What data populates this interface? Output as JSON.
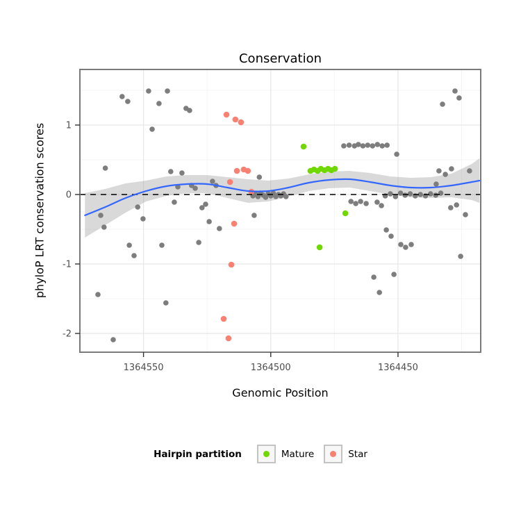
{
  "chart_data": {
    "type": "scatter",
    "title": "Conservation",
    "xlabel": "Genomic Position",
    "ylabel": "phyloP LRT conservation scores",
    "x_axis": {
      "ticks": [
        1364550,
        1364500,
        1364450
      ],
      "range_left_to_right": [
        1364575,
        1364417.5
      ],
      "reversed": true
    },
    "y_axis": {
      "ticks": [
        1,
        0,
        -1,
        -2
      ],
      "range": [
        -2.27,
        1.8
      ]
    },
    "hline": {
      "y": 0,
      "style": "dashed",
      "color": "#000000"
    },
    "smooth": {
      "color": "#3366FF",
      "ribbon_color": "#9C9C9C",
      "ribbon_opacity": 0.38,
      "points": [
        [
          1364573,
          -0.3,
          -0.62,
          0.02
        ],
        [
          1364565,
          -0.18,
          -0.44,
          0.08
        ],
        [
          1364557,
          -0.05,
          -0.26,
          0.16
        ],
        [
          1364549,
          0.05,
          -0.1,
          0.2
        ],
        [
          1364541,
          0.12,
          -0.02,
          0.26
        ],
        [
          1364533,
          0.15,
          0.02,
          0.28
        ],
        [
          1364525,
          0.15,
          0.02,
          0.28
        ],
        [
          1364517,
          0.1,
          -0.05,
          0.25
        ],
        [
          1364509,
          0.05,
          -0.12,
          0.22
        ],
        [
          1364501,
          0.05,
          -0.1,
          0.2
        ],
        [
          1364493,
          0.1,
          -0.03,
          0.23
        ],
        [
          1364485,
          0.17,
          0.05,
          0.29
        ],
        [
          1364477,
          0.21,
          0.09,
          0.33
        ],
        [
          1364469,
          0.22,
          0.1,
          0.34
        ],
        [
          1364461,
          0.18,
          0.05,
          0.31
        ],
        [
          1364453,
          0.13,
          0.0,
          0.26
        ],
        [
          1364445,
          0.1,
          -0.04,
          0.24
        ],
        [
          1364437,
          0.1,
          -0.05,
          0.25
        ],
        [
          1364429,
          0.13,
          -0.04,
          0.3
        ],
        [
          1364421,
          0.18,
          -0.08,
          0.44
        ],
        [
          1364418,
          0.2,
          -0.12,
          0.52
        ]
      ]
    },
    "series": [
      {
        "name": "other",
        "color": "#7D7D7D",
        "radius": 3.8,
        "points": [
          [
            1364565.0,
            0.38
          ],
          [
            1364566.8,
            -0.3
          ],
          [
            1364565.5,
            -0.47
          ],
          [
            1364567.9,
            -1.44
          ],
          [
            1364561.9,
            -2.09
          ],
          [
            1364558.4,
            1.41
          ],
          [
            1364556.2,
            1.34
          ],
          [
            1364555.6,
            -0.73
          ],
          [
            1364553.7,
            -0.88
          ],
          [
            1364552.3,
            -0.18
          ],
          [
            1364550.2,
            -0.35
          ],
          [
            1364548.0,
            1.49
          ],
          [
            1364546.6,
            0.94
          ],
          [
            1364543.9,
            1.31
          ],
          [
            1364542.8,
            -0.73
          ],
          [
            1364541.2,
            -1.56
          ],
          [
            1364540.6,
            1.49
          ],
          [
            1364539.3,
            0.33
          ],
          [
            1364537.9,
            -0.11
          ],
          [
            1364536.5,
            0.11
          ],
          [
            1364534.9,
            0.31
          ],
          [
            1364533.3,
            1.24
          ],
          [
            1364531.9,
            1.21
          ],
          [
            1364531.1,
            0.13
          ],
          [
            1364529.7,
            0.09
          ],
          [
            1364528.3,
            -0.69
          ],
          [
            1364527.0,
            -0.19
          ],
          [
            1364525.6,
            -0.14
          ],
          [
            1364524.2,
            -0.39
          ],
          [
            1364522.9,
            0.19
          ],
          [
            1364521.5,
            0.13
          ],
          [
            1364520.2,
            -0.49
          ],
          [
            1364507.0,
            -0.02
          ],
          [
            1364506.0,
            0.01
          ],
          [
            1364505.0,
            -0.03
          ],
          [
            1364504.0,
            0.02
          ],
          [
            1364503.0,
            -0.01
          ],
          [
            1364502.0,
            -0.04
          ],
          [
            1364501.0,
            0.01
          ],
          [
            1364500.0,
            -0.02
          ],
          [
            1364499.0,
            0.02
          ],
          [
            1364498.0,
            -0.03
          ],
          [
            1364497.0,
            0.0
          ],
          [
            1364496.0,
            -0.02
          ],
          [
            1364495.0,
            0.01
          ],
          [
            1364494.0,
            -0.03
          ],
          [
            1364506.5,
            -0.3
          ],
          [
            1364504.5,
            0.25
          ],
          [
            1364471.3,
            0.7
          ],
          [
            1364469.2,
            0.71
          ],
          [
            1364467.1,
            0.7
          ],
          [
            1364465.6,
            0.72
          ],
          [
            1364463.8,
            0.7
          ],
          [
            1364461.9,
            0.71
          ],
          [
            1364460.0,
            0.7
          ],
          [
            1364458.1,
            0.72
          ],
          [
            1364456.2,
            0.7
          ],
          [
            1364454.3,
            0.71
          ],
          [
            1364450.5,
            0.58
          ],
          [
            1364468.5,
            -0.1
          ],
          [
            1364466.6,
            -0.13
          ],
          [
            1364464.7,
            -0.1
          ],
          [
            1364462.5,
            -0.13
          ],
          [
            1364458.2,
            -0.11
          ],
          [
            1364456.5,
            -0.16
          ],
          [
            1364459.5,
            -1.19
          ],
          [
            1364457.3,
            -1.41
          ],
          [
            1364454.6,
            -0.51
          ],
          [
            1364452.7,
            -0.6
          ],
          [
            1364451.6,
            -1.15
          ],
          [
            1364448.9,
            -0.72
          ],
          [
            1364447.0,
            -0.76
          ],
          [
            1364444.8,
            -0.72
          ],
          [
            1364455.0,
            -0.02
          ],
          [
            1364453.0,
            0.01
          ],
          [
            1364451.0,
            -0.03
          ],
          [
            1364449.0,
            0.02
          ],
          [
            1364447.2,
            -0.01
          ],
          [
            1364445.2,
            0.01
          ],
          [
            1364443.2,
            -0.02
          ],
          [
            1364441.2,
            0.0
          ],
          [
            1364439.2,
            -0.02
          ],
          [
            1364437.2,
            0.01
          ],
          [
            1364435.2,
            -0.01
          ],
          [
            1364433.2,
            0.02
          ],
          [
            1364435.0,
            0.15
          ],
          [
            1364433.9,
            0.34
          ],
          [
            1364431.4,
            0.29
          ],
          [
            1364429.0,
            0.37
          ],
          [
            1364432.5,
            1.3
          ],
          [
            1364427.6,
            1.49
          ],
          [
            1364426.0,
            1.39
          ],
          [
            1364429.3,
            -0.19
          ],
          [
            1364427.0,
            -0.15
          ],
          [
            1364425.4,
            -0.89
          ],
          [
            1364423.5,
            -0.29
          ],
          [
            1364421.9,
            0.34
          ]
        ]
      },
      {
        "name": "Mature",
        "color": "#70D800",
        "radius": 4.3,
        "points": [
          [
            1364487.1,
            0.69
          ],
          [
            1364484.4,
            0.34
          ],
          [
            1364483.0,
            0.36
          ],
          [
            1364481.6,
            0.34
          ],
          [
            1364480.3,
            0.37
          ],
          [
            1364478.9,
            0.35
          ],
          [
            1364477.5,
            0.37
          ],
          [
            1364476.2,
            0.35
          ],
          [
            1364474.8,
            0.37
          ],
          [
            1364480.8,
            -0.76
          ],
          [
            1364470.7,
            -0.27
          ]
        ]
      },
      {
        "name": "Star",
        "color": "#FA8072",
        "radius": 4.3,
        "points": [
          [
            1364517.4,
            1.15
          ],
          [
            1364513.9,
            1.08
          ],
          [
            1364511.7,
            1.04
          ],
          [
            1364516.0,
            0.18
          ],
          [
            1364513.3,
            0.34
          ],
          [
            1364510.6,
            0.36
          ],
          [
            1364509.0,
            0.34
          ],
          [
            1364514.4,
            -0.42
          ],
          [
            1364515.5,
            -1.01
          ],
          [
            1364518.5,
            -1.79
          ],
          [
            1364516.6,
            -2.07
          ],
          [
            1364507.6,
            0.04
          ]
        ]
      }
    ],
    "legend": {
      "title": "Hairpin partition",
      "items": [
        {
          "label": "Mature",
          "color": "#70D800"
        },
        {
          "label": "Star",
          "color": "#FA8072"
        }
      ]
    },
    "colors": {
      "grid_major": "#E8E8E8",
      "grid_minor": "#F4F4F4",
      "panel_border": "#7A7A7A",
      "tick_label": "#4D4D4D"
    }
  }
}
